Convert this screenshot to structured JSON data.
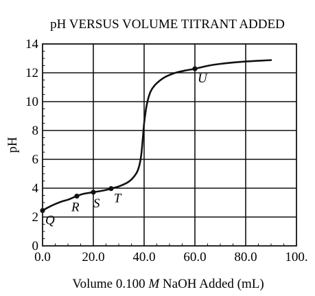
{
  "chart_data": {
    "type": "line",
    "title": "pH VERSUS VOLUME TITRANT ADDED",
    "xlabel_parts": [
      "Volume 0.100 ",
      "M",
      " NaOH Added (mL)"
    ],
    "ylabel": "pH",
    "xlim": [
      0,
      100
    ],
    "ylim": [
      0,
      14
    ],
    "x_ticks": [
      0,
      20,
      40,
      60,
      80,
      100
    ],
    "x_tick_labels": [
      "0.0",
      "20.0",
      "40.0",
      "60.0",
      "80.0",
      "100."
    ],
    "y_ticks": [
      0,
      2,
      4,
      6,
      8,
      10,
      12,
      14
    ],
    "y_tick_labels": [
      "0",
      "2",
      "4",
      "6",
      "8",
      "10",
      "12",
      "14"
    ],
    "grid": true,
    "series": [
      {
        "x": [
          0,
          2,
          5,
          8,
          10,
          13,
          16,
          20,
          24,
          27,
          30,
          33,
          35,
          37,
          38,
          38.5,
          39,
          39.5,
          40,
          40.5,
          41,
          42,
          43,
          45,
          48,
          52,
          56,
          60,
          65,
          70,
          80,
          90
        ],
        "y": [
          2.45,
          2.65,
          2.9,
          3.1,
          3.2,
          3.42,
          3.6,
          3.72,
          3.84,
          3.97,
          4.12,
          4.35,
          4.6,
          5.05,
          5.5,
          5.9,
          6.5,
          7.5,
          8.5,
          9.2,
          9.75,
          10.45,
          10.85,
          11.28,
          11.68,
          11.98,
          12.15,
          12.28,
          12.48,
          12.62,
          12.78,
          12.88
        ]
      }
    ],
    "labeled_points": [
      {
        "label": "Q",
        "x": 0,
        "y": 2.45
      },
      {
        "label": "R",
        "x": 13.5,
        "y": 3.45
      },
      {
        "label": "S",
        "x": 20,
        "y": 3.72
      },
      {
        "label": "T",
        "x": 27,
        "y": 3.97
      },
      {
        "label": "U",
        "x": 60,
        "y": 12.28
      }
    ]
  }
}
